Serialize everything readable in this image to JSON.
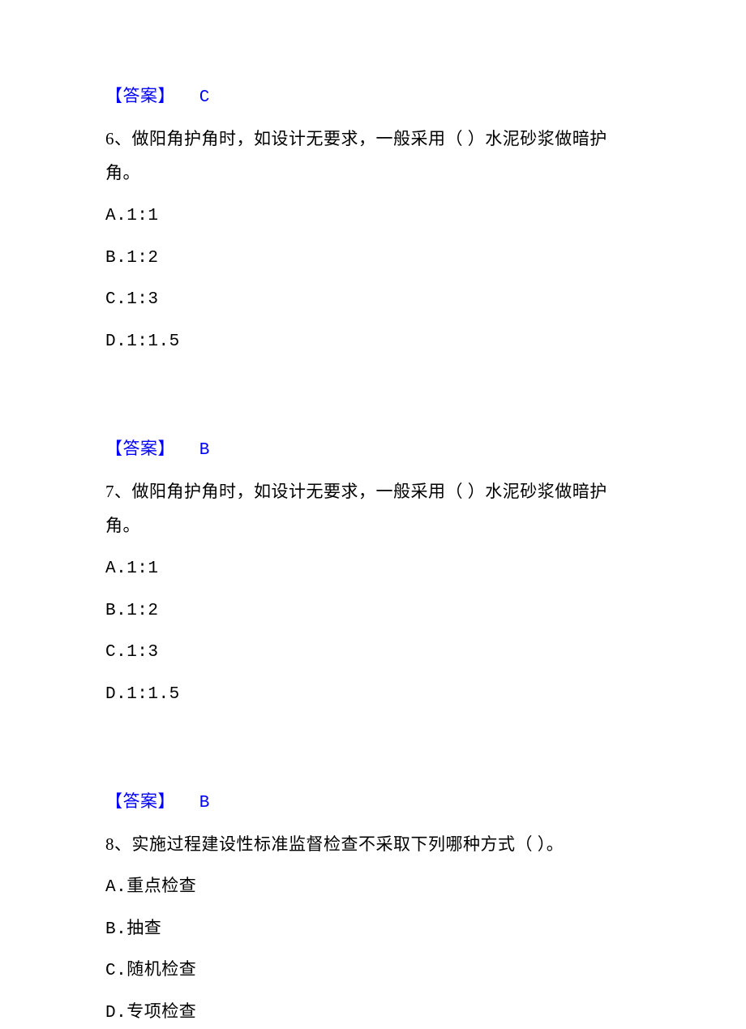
{
  "prev_answer": {
    "label": "【答案】",
    "value": "C"
  },
  "q6": {
    "text": "6、做阳角护角时，如设计无要求，一般采用（ ）水泥砂浆做暗护角。",
    "options": {
      "a": "A.1:1",
      "b": "B.1:2",
      "c": "C.1:3",
      "d": "D.1:1.5"
    },
    "answer": {
      "label": "【答案】",
      "value": "B"
    }
  },
  "q7": {
    "text": "7、做阳角护角时，如设计无要求，一般采用（ ）水泥砂浆做暗护角。",
    "options": {
      "a": "A.1:1",
      "b": "B.1:2",
      "c": "C.1:3",
      "d": "D.1:1.5"
    },
    "answer": {
      "label": "【答案】",
      "value": "B"
    }
  },
  "q8": {
    "text": "8、实施过程建设性标准监督检查不采取下列哪种方式（ ）。",
    "options": {
      "a": "A.重点检查",
      "b": "B.抽查",
      "c": "C.随机检查",
      "d": "D.专项检查"
    }
  },
  "colors": {
    "text": "#000000",
    "answer": "#0000ff",
    "background": "#ffffff"
  }
}
